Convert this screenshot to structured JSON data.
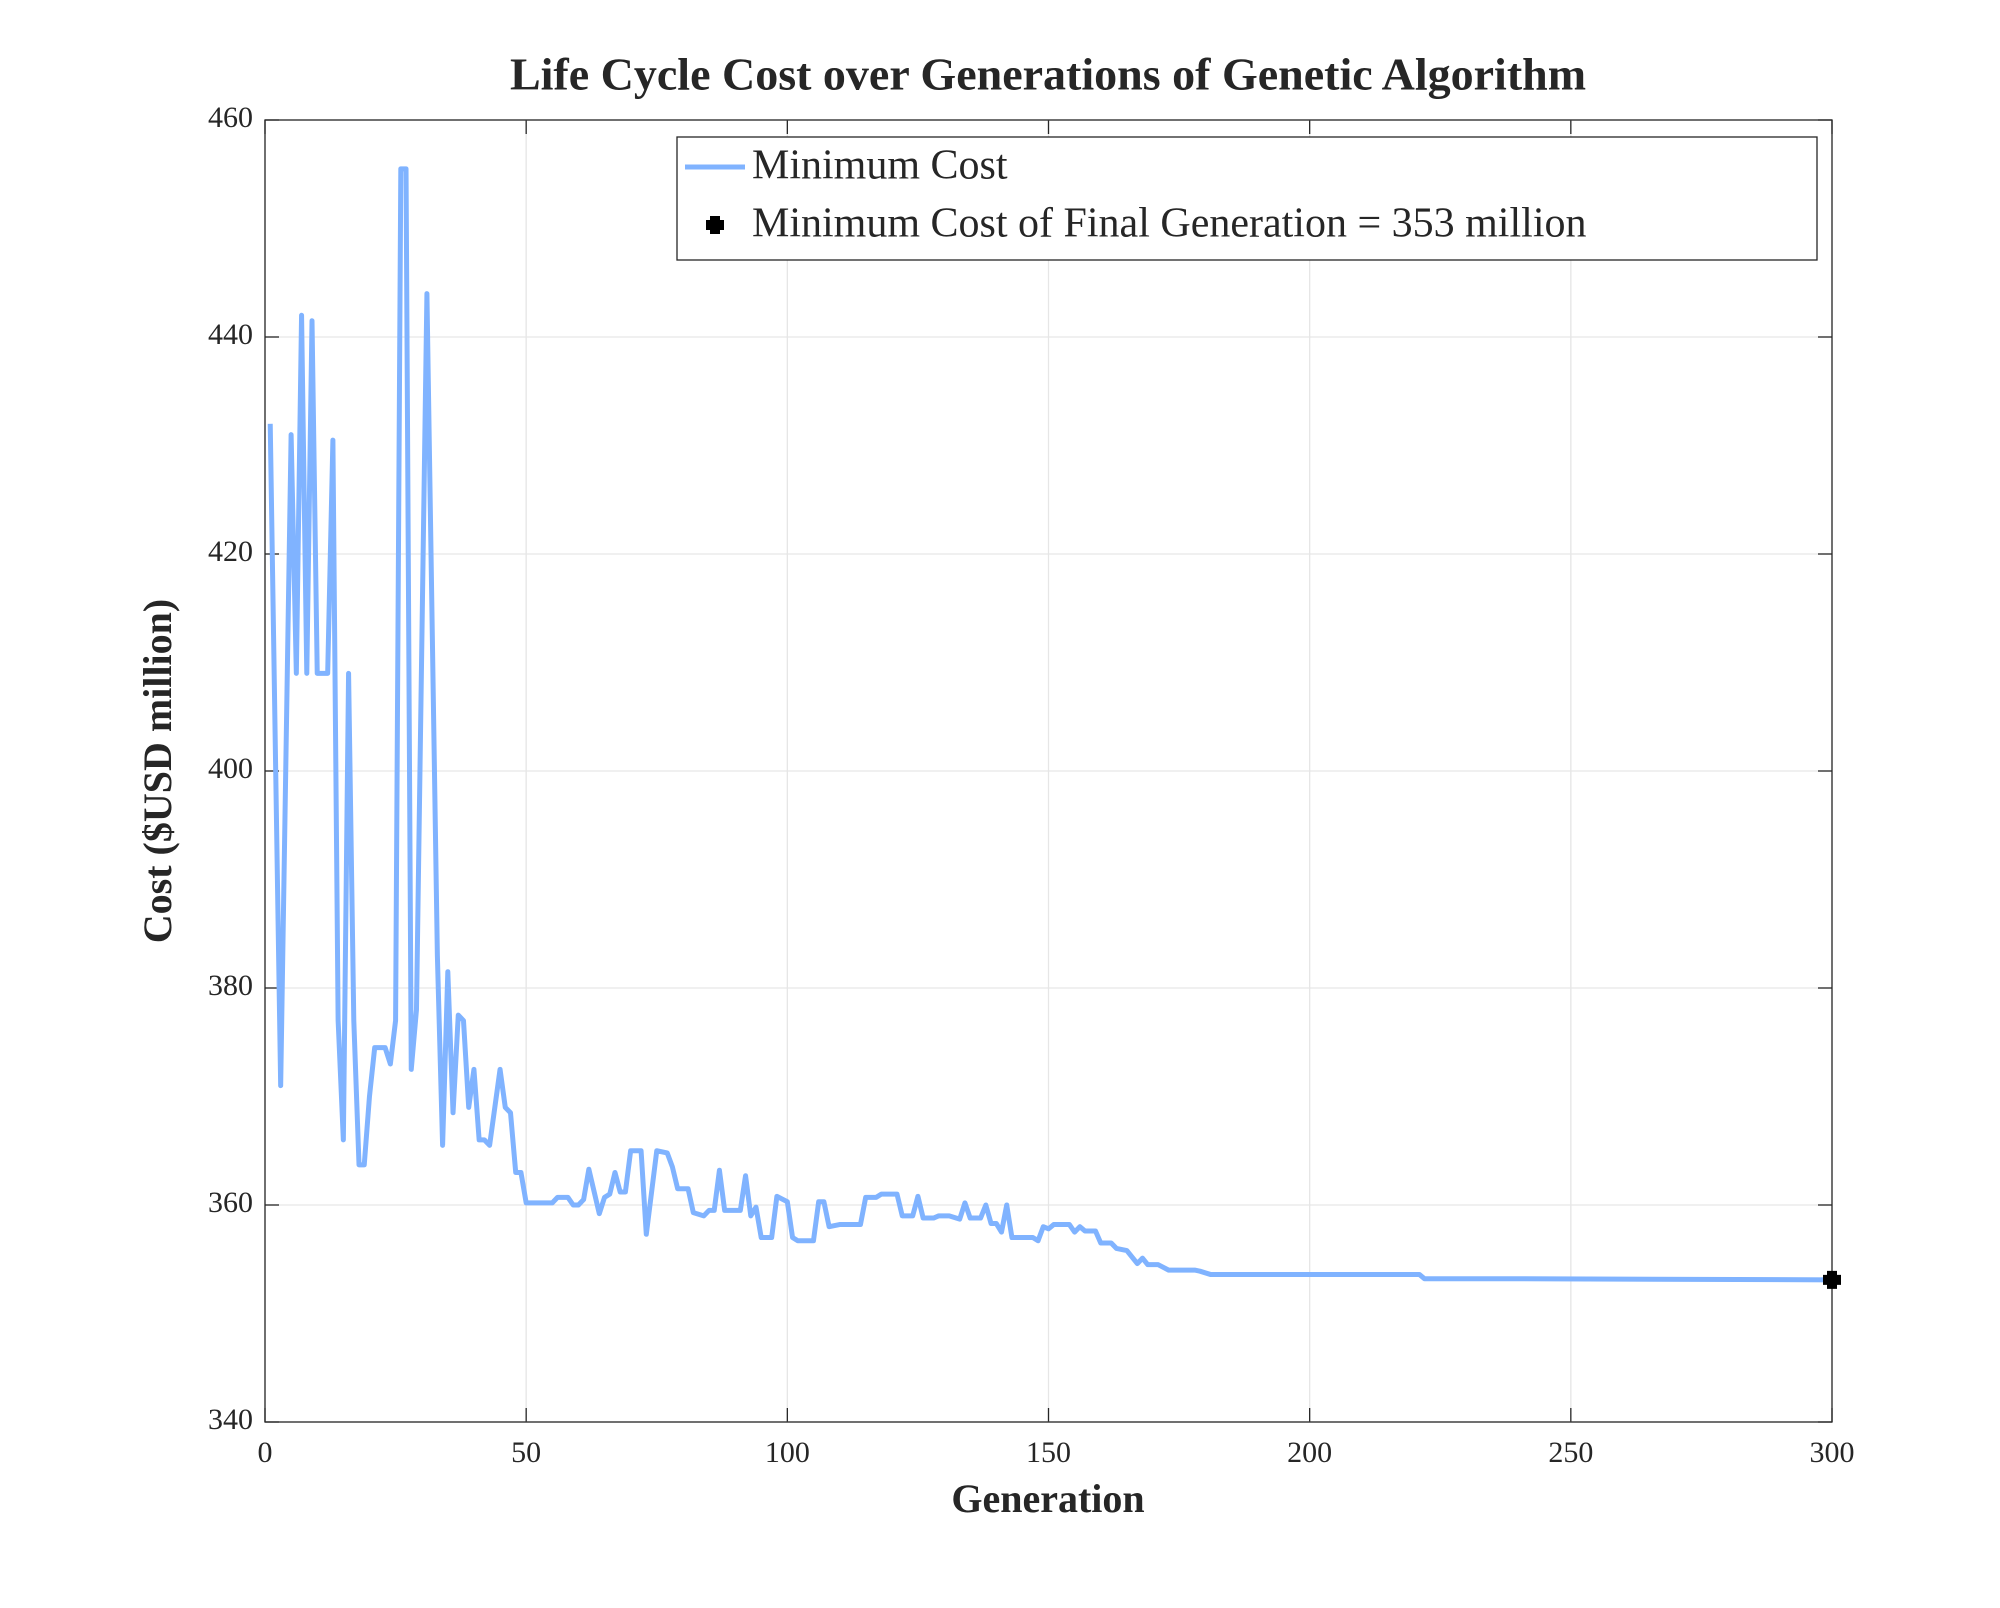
{
  "chart_data": {
    "type": "line",
    "title": "Life Cycle Cost over Generations of Genetic Algorithm",
    "x_label": "Generation",
    "y_label": "Cost ($USD million)",
    "x": [
      1,
      3,
      5,
      6,
      7,
      8,
      9,
      10,
      12,
      13,
      14,
      15,
      16,
      17,
      18,
      19,
      20,
      21,
      23,
      24,
      25,
      26,
      27,
      28,
      29,
      31,
      33,
      34,
      35,
      36,
      37,
      38,
      39,
      40,
      41,
      42,
      43,
      45,
      46,
      47,
      48,
      49,
      50,
      55,
      56,
      58,
      59,
      60,
      61,
      62,
      64,
      65,
      66,
      67,
      68,
      69,
      70,
      72,
      73,
      75,
      77,
      78,
      79,
      81,
      82,
      84,
      85,
      86,
      87,
      88,
      91,
      92,
      93,
      94,
      95,
      97,
      98,
      100,
      101,
      102,
      105,
      106,
      107,
      108,
      110,
      114,
      115,
      117,
      118,
      121,
      122,
      124,
      125,
      126,
      128,
      129,
      131,
      133,
      134,
      135,
      137,
      138,
      139,
      140,
      141,
      142,
      143,
      147,
      148,
      149,
      150,
      151,
      154,
      155,
      156,
      157,
      159,
      160,
      162,
      163,
      165,
      167,
      168,
      169,
      171,
      173,
      178,
      179,
      181,
      184,
      221,
      222,
      240,
      300
    ],
    "series": [
      {
        "name": "Minimum Cost",
        "color": "#80b3ff",
        "values": [
          432,
          371,
          431,
          409,
          442,
          409,
          441.5,
          409,
          409,
          430.5,
          377,
          366,
          409,
          377,
          363.7,
          363.7,
          370,
          374.5,
          374.5,
          373,
          377,
          455.5,
          455.5,
          372.5,
          378,
          444,
          383,
          365.5,
          381.5,
          368.5,
          377.5,
          377,
          369,
          372.5,
          366,
          366,
          365.5,
          372.5,
          369,
          368.5,
          363,
          363,
          360.2,
          360.2,
          360.7,
          360.7,
          360,
          360,
          360.5,
          363.3,
          359.2,
          360.7,
          361,
          363,
          361.2,
          361.2,
          365,
          365,
          357.3,
          365,
          364.8,
          363.5,
          361.5,
          361.5,
          359.3,
          359,
          359.5,
          359.5,
          363.2,
          359.5,
          359.5,
          362.7,
          359,
          359.8,
          357,
          357,
          360.8,
          360.3,
          357,
          356.7,
          356.7,
          360.3,
          360.3,
          358,
          358.2,
          358.2,
          360.7,
          360.7,
          361,
          361,
          359,
          359,
          360.8,
          358.8,
          358.8,
          359,
          359,
          358.7,
          360.2,
          358.8,
          358.8,
          360,
          358.3,
          358.3,
          357.5,
          360,
          357,
          357,
          356.7,
          358,
          357.8,
          358.2,
          358.2,
          357.5,
          358,
          357.6,
          357.6,
          356.5,
          356.5,
          356,
          355.8,
          354.6,
          355.1,
          354.5,
          354.5,
          354,
          354,
          353.9,
          353.6,
          353.6,
          353.6,
          353.2,
          353.2,
          353.1
        ]
      }
    ],
    "markers": [
      {
        "name": "Minimum Cost of Final Generation = 353 million",
        "color": "#000000",
        "x": [
          300
        ],
        "y": [
          353.1
        ]
      }
    ],
    "xlim": [
      0,
      300
    ],
    "xticks": [
      0,
      50,
      100,
      150,
      200,
      250,
      300
    ],
    "ylim": [
      340,
      460
    ],
    "yticks": [
      340,
      360,
      380,
      400,
      420,
      440,
      460
    ],
    "grid": true,
    "legend": "upper right"
  }
}
